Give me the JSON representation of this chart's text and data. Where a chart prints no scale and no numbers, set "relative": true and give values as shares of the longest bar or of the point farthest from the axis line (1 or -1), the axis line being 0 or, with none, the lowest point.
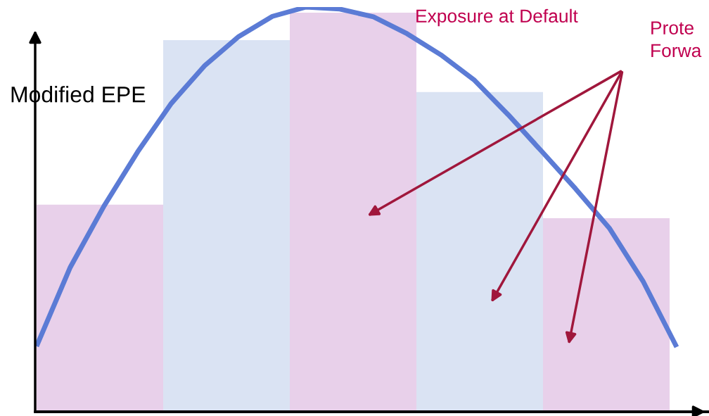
{
  "chart_data": [
    {
      "type": "bar",
      "relative": true,
      "ylabel": "Modified EPE",
      "categories": [
        null,
        null,
        null,
        null,
        null
      ],
      "annotations": [
        "Exposure at Default",
        "Prote\nForwa"
      ],
      "colors": [
        "#e8d0ea",
        "#dae3f3",
        "#e8d0ea",
        "#dae3f3",
        "#e8d0ea"
      ],
      "values": [
        0.519,
        0.931,
        1,
        0.801,
        0.485
      ]
    },
    {
      "type": "line",
      "relative": true,
      "color": "#5b7bd5",
      "categories": [
        null,
        null,
        null,
        null,
        null,
        null,
        null,
        null,
        null,
        null,
        null,
        null,
        null,
        null,
        null,
        null,
        null,
        null,
        null,
        null
      ],
      "values": [
        0.162,
        0.357,
        0.508,
        0.642,
        0.762,
        0.856,
        0.927,
        0.977,
        1,
        0.995,
        0.976,
        0.934,
        0.882,
        0.819,
        0.734,
        0.643,
        0.551,
        0.454,
        0.323,
        0.16
      ]
    }
  ]
}
